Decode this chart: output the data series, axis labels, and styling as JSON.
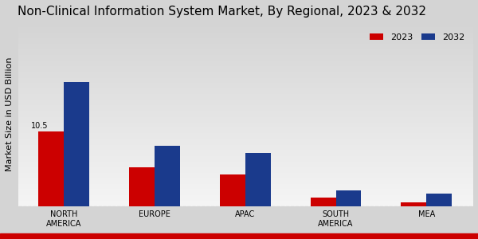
{
  "title": "Non-Clinical Information System Market, By Regional, 2023 & 2032",
  "ylabel": "Market Size in USD Billion",
  "categories": [
    "NORTH\nAMERICA",
    "EUROPE",
    "APAC",
    "SOUTH\nAMERICA",
    "MEA"
  ],
  "values_2023": [
    10.5,
    5.5,
    4.5,
    1.2,
    0.6
  ],
  "values_2032": [
    17.5,
    8.5,
    7.5,
    2.2,
    1.8
  ],
  "color_2023": "#cc0000",
  "color_2032": "#1a3a8c",
  "annotation_text": "10.5",
  "annotation_bar": 0,
  "bar_width": 0.28,
  "ylim": [
    0,
    26
  ],
  "bg_color_top": "#d4d4d4",
  "bg_color_bottom": "#f5f5f5",
  "legend_labels": [
    "2023",
    "2032"
  ],
  "title_fontsize": 11,
  "axis_label_fontsize": 8,
  "tick_fontsize": 7,
  "red_bar_color": "#cc0000",
  "red_bar_height": 0.025
}
